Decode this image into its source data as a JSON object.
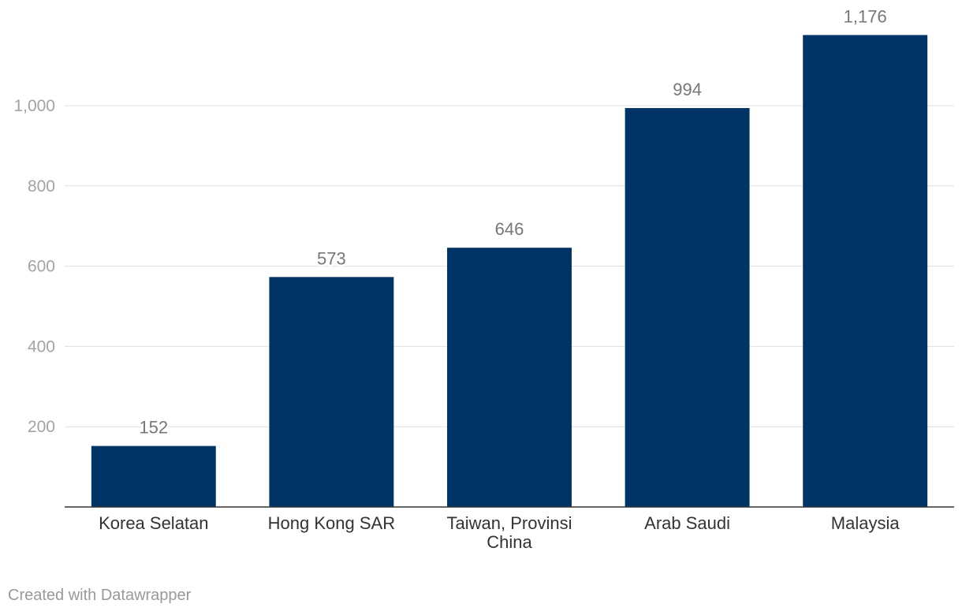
{
  "chart_data": {
    "type": "bar",
    "title": "",
    "xlabel": "",
    "ylabel": "",
    "categories": [
      "Korea Selatan",
      "Hong Kong SAR",
      "Taiwan, Provinsi China",
      "Arab Saudi",
      "Malaysia"
    ],
    "category_lines": [
      [
        "Korea Selatan"
      ],
      [
        "Hong Kong SAR"
      ],
      [
        "Taiwan, Provinsi",
        "China"
      ],
      [
        "Arab Saudi"
      ],
      [
        "Malaysia"
      ]
    ],
    "values": [
      152,
      573,
      646,
      994,
      1176
    ],
    "value_labels": [
      "152",
      "573",
      "646",
      "994",
      "1,176"
    ],
    "ylim": [
      0,
      1176
    ],
    "yticks": [
      200,
      400,
      600,
      800,
      1000
    ],
    "ytick_labels": [
      "200",
      "400",
      "600",
      "800",
      "1,000"
    ],
    "grid": true,
    "bar_color": "#003366"
  },
  "footer": {
    "credit": "Created with Datawrapper"
  }
}
